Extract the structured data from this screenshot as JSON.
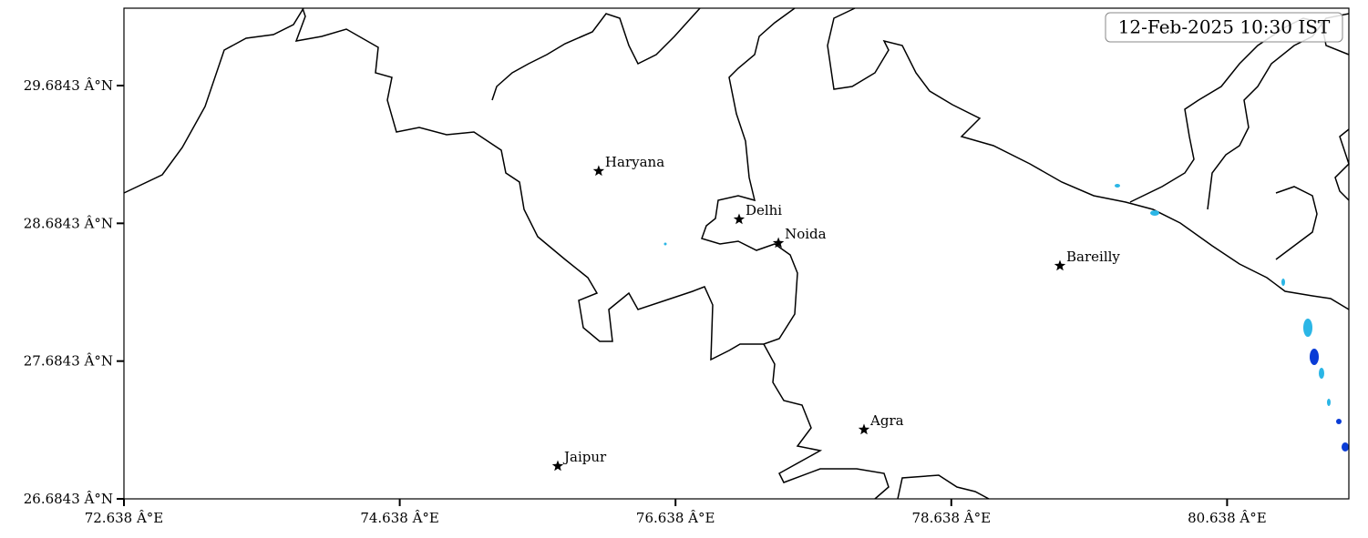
{
  "map": {
    "timestamp": "12-Feb-2025 10:30 IST",
    "xlim": [
      72.638,
      81.521
    ],
    "ylim": [
      26.6843,
      30.246
    ],
    "xticks": [
      {
        "value": 72.638,
        "label": "72.638 Â°E"
      },
      {
        "value": 74.638,
        "label": "74.638 Â°E"
      },
      {
        "value": 76.638,
        "label": "76.638 Â°E"
      },
      {
        "value": 78.638,
        "label": "78.638 Â°E"
      },
      {
        "value": 80.638,
        "label": "80.638 Â°E"
      }
    ],
    "yticks": [
      {
        "value": 26.6843,
        "label": "26.6843 Â°N"
      },
      {
        "value": 27.6843,
        "label": "27.6843 Â°N"
      },
      {
        "value": 28.6843,
        "label": "28.6843 Â°N"
      },
      {
        "value": 29.6843,
        "label": "29.6843 Â°N"
      }
    ],
    "places": [
      {
        "name": "Haryana",
        "lon": 76.081,
        "lat": 29.064
      },
      {
        "name": "Delhi",
        "lon": 77.099,
        "lat": 28.713
      },
      {
        "name": "Noida",
        "lon": 77.384,
        "lat": 28.541
      },
      {
        "name": "Bareilly",
        "lon": 79.426,
        "lat": 28.376
      },
      {
        "name": "Agra",
        "lon": 78.005,
        "lat": 27.187
      },
      {
        "name": "Jaipur",
        "lon": 75.784,
        "lat": 26.922
      }
    ]
  }
}
